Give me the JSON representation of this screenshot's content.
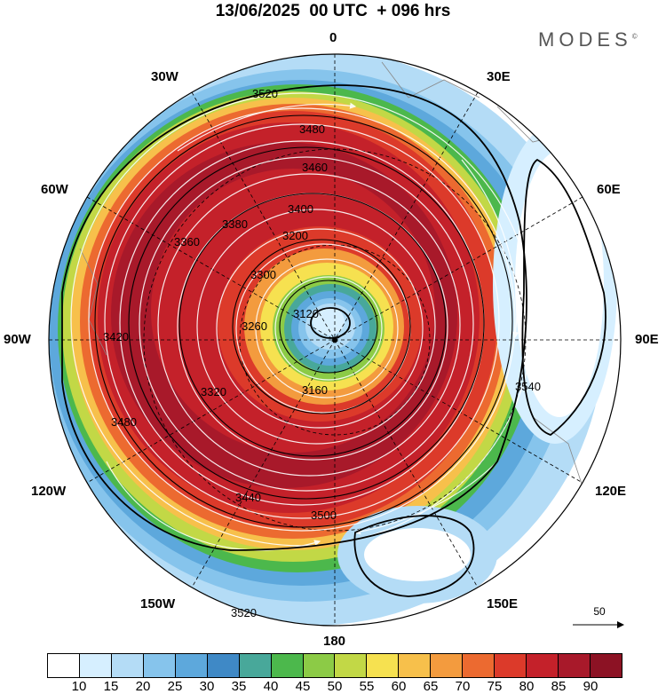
{
  "title": "13/06/2025  00 UTC  + 096 hrs",
  "brand": {
    "name": "MODES",
    "symbol": "©"
  },
  "longitude_labels": {
    "top": "0",
    "top_left": "30W",
    "top_right": "30E",
    "upper_left": "60W",
    "upper_right": "60E",
    "left": "90W",
    "right": "90E",
    "lower_left": "120W",
    "lower_right": "120E",
    "bottom_left": "150W",
    "bottom_right": "150E",
    "bottom": "180"
  },
  "contour_labels": [
    "3520",
    "3480",
    "3460",
    "3400",
    "3380",
    "3360",
    "3300",
    "3200",
    "3120",
    "3160",
    "3260",
    "3320",
    "3420",
    "3440",
    "3500",
    "3540",
    "3480",
    "3520"
  ],
  "reference_vector": {
    "label": "50"
  },
  "colorbar": {
    "colors": [
      "#ffffff",
      "#d6efff",
      "#b4dcf6",
      "#86c4ec",
      "#5da8dc",
      "#3f89c6",
      "#48a89a",
      "#4cb84c",
      "#8ccb46",
      "#c2d846",
      "#f6e150",
      "#f7c04b",
      "#f39b3e",
      "#ec6a30",
      "#dc3a2a",
      "#c4212a",
      "#a8192a",
      "#8c1224"
    ],
    "tick_labels": [
      "10",
      "15",
      "20",
      "25",
      "30",
      "35",
      "40",
      "45",
      "50",
      "55",
      "60",
      "65",
      "70",
      "75",
      "80",
      "85",
      "90"
    ]
  }
}
